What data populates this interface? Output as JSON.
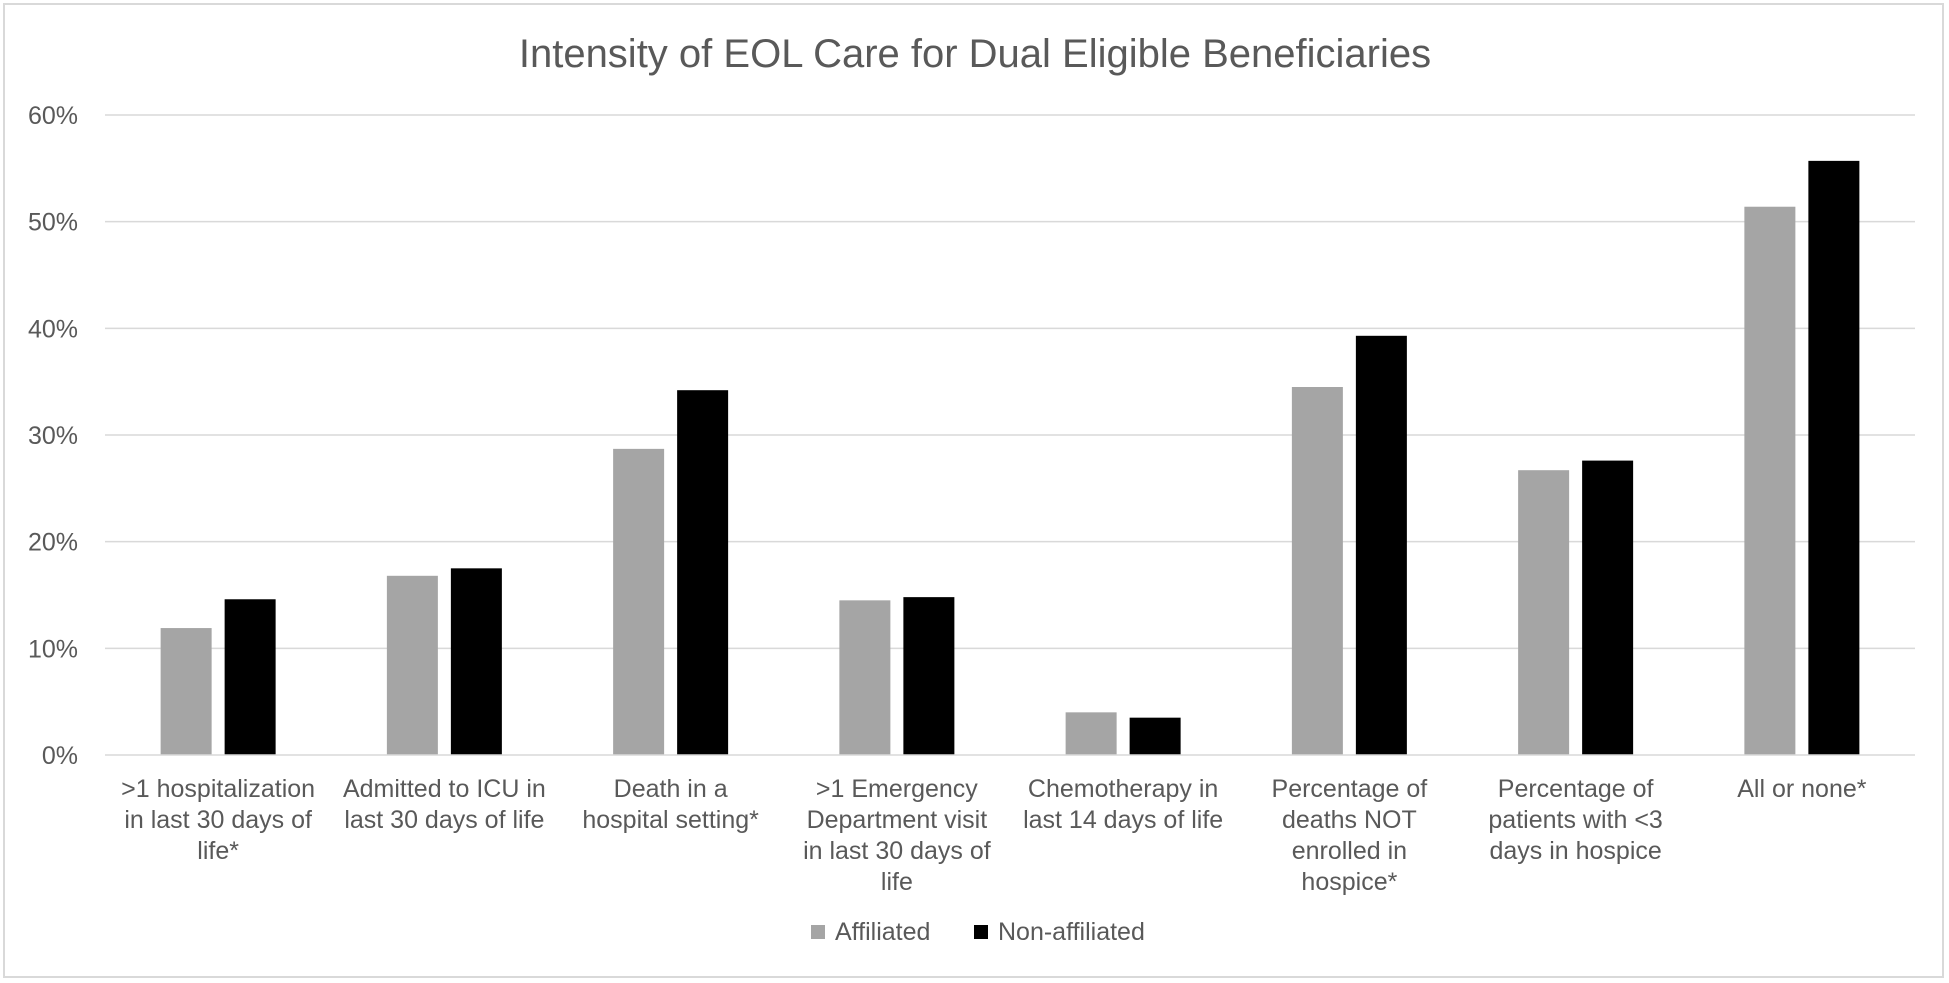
{
  "chart_data": {
    "type": "bar",
    "title": "Intensity of EOL Care for Dual Eligible Beneficiaries",
    "xlabel": "",
    "ylabel": "",
    "ylim": [
      0,
      0.6
    ],
    "yticks": [
      0,
      0.1,
      0.2,
      0.3,
      0.4,
      0.5,
      0.6
    ],
    "ytick_labels": [
      "0%",
      "10%",
      "20%",
      "30%",
      "40%",
      "50%",
      "60%"
    ],
    "grid": true,
    "legend_position": "bottom",
    "categories": [
      [
        ">1 hospitalization",
        "in last 30 days of",
        "life*"
      ],
      [
        "Admitted to ICU in",
        "last 30 days of life"
      ],
      [
        "Death in a",
        "hospital setting*"
      ],
      [
        ">1 Emergency",
        "Department visit",
        "in last 30 days of",
        "life"
      ],
      [
        "Chemotherapy in",
        "last 14 days of life"
      ],
      [
        "Percentage of",
        "deaths NOT",
        "enrolled in",
        "hospice*"
      ],
      [
        "Percentage of",
        "patients with <3",
        "days in hospice"
      ],
      [
        "All or none*"
      ]
    ],
    "series": [
      {
        "name": "Affiliated",
        "color": "#a5a5a5",
        "values": [
          0.119,
          0.168,
          0.287,
          0.145,
          0.04,
          0.345,
          0.267,
          0.514
        ]
      },
      {
        "name": "Non-affiliated",
        "color": "#000000",
        "values": [
          0.146,
          0.175,
          0.342,
          0.148,
          0.035,
          0.393,
          0.276,
          0.557
        ]
      }
    ]
  }
}
